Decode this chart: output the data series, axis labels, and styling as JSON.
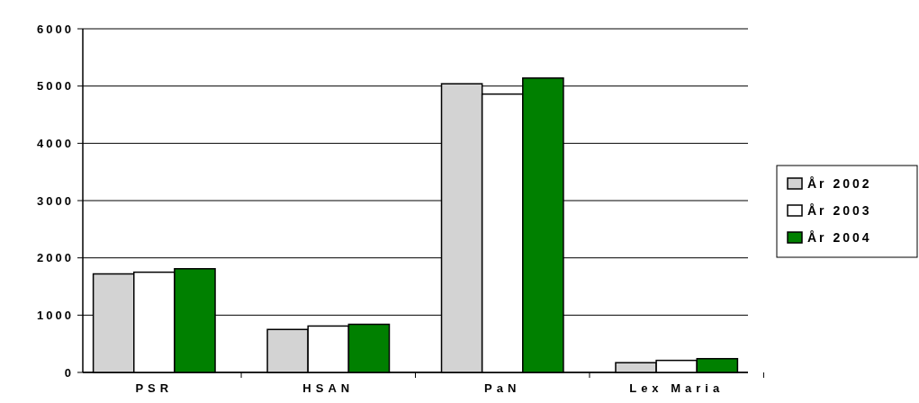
{
  "chart_data": {
    "type": "bar",
    "categories": [
      "PSR",
      "HSAN",
      "PaN",
      "Lex Maria"
    ],
    "series": [
      {
        "name": "År 2002",
        "color": "#d3d3d3",
        "values": [
          1720,
          750,
          5040,
          170
        ]
      },
      {
        "name": "År 2003",
        "color": "#ffffff",
        "values": [
          1750,
          810,
          4860,
          210
        ]
      },
      {
        "name": "År 2004",
        "color": "#008000",
        "values": [
          1810,
          840,
          5140,
          240
        ]
      }
    ],
    "ylim": [
      0,
      6000
    ],
    "yticks": [
      0,
      1000,
      2000,
      3000,
      4000,
      5000,
      6000
    ],
    "grid": "y",
    "legend": "right"
  }
}
